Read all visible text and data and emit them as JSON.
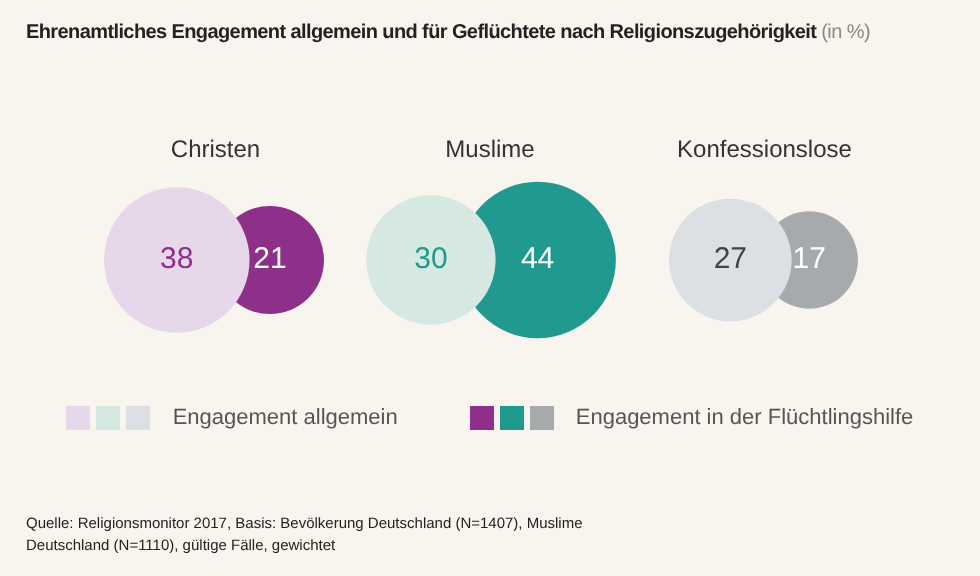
{
  "chart_data": {
    "type": "other",
    "title": "Ehrenamtliches Engagement allgemein und für Geflüchtete nach Religionszugehörigkeit",
    "subtitle": "(in %)",
    "categories": [
      "Christen",
      "Muslime",
      "Konfessionslose"
    ],
    "series": [
      {
        "name": "Engagement allgemein",
        "colors": [
          "#e6d7ea",
          "#d5e9e2",
          "#dcdfe3"
        ],
        "values": [
          38,
          30,
          27
        ]
      },
      {
        "name": "Engagement in der Flüchtlingshilfe",
        "colors": [
          "#8e3089",
          "#20998f",
          "#a7aaad"
        ],
        "values": [
          21,
          44,
          17
        ]
      }
    ],
    "data_labels": true,
    "legend": "bottom",
    "annotations": [
      "Quelle: Religionsmonitor 2017, Basis: Bevölkerung Deutschland (N=1407), Muslime Deutschland (N=1110), gültige Fälle, gewichtet"
    ]
  }
}
